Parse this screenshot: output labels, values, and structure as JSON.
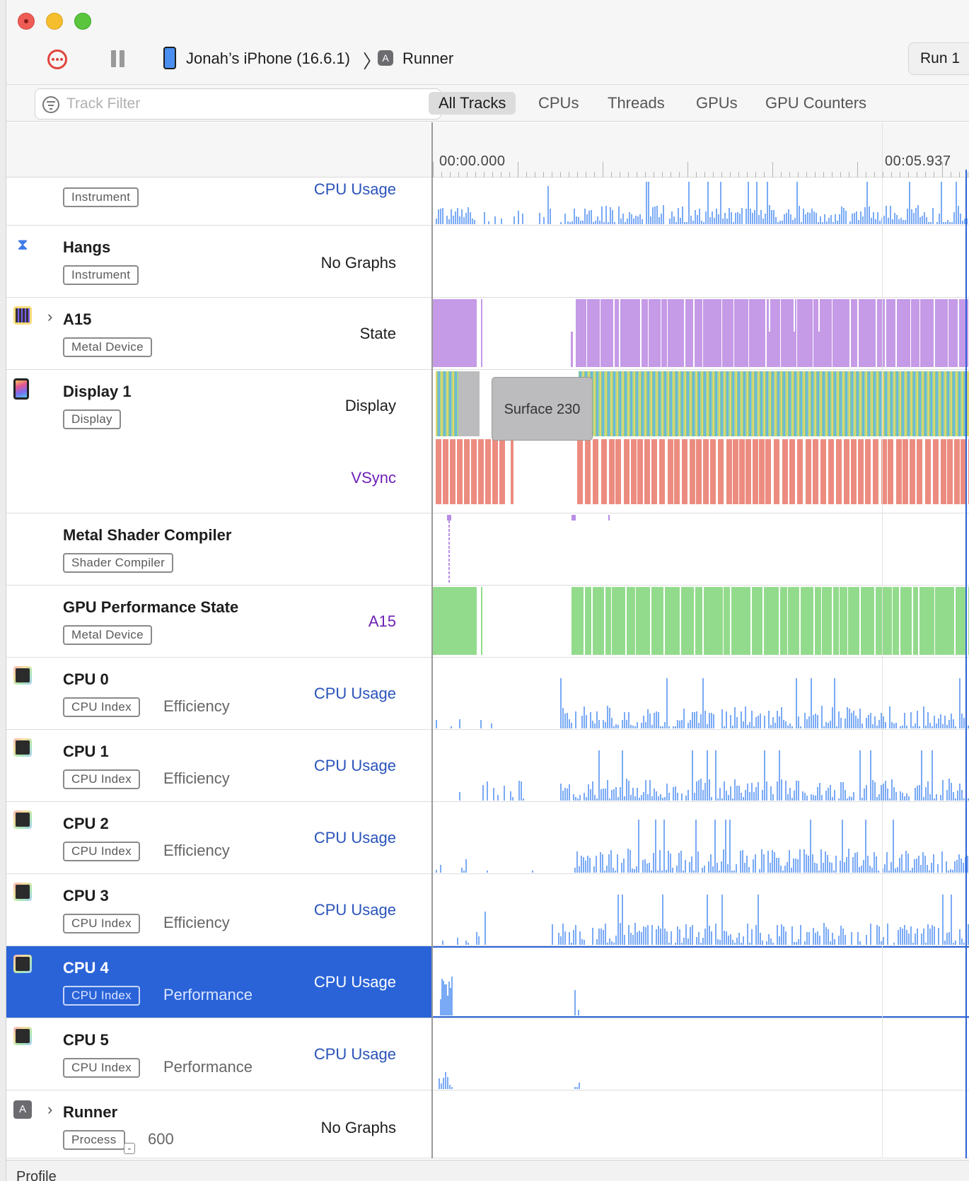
{
  "toolbar": {
    "device": "Jonah’s iPhone (16.6.1)",
    "app": "Runner",
    "run_label": "Run 1"
  },
  "filter": {
    "placeholder": "Track Filter",
    "segments": [
      "All Tracks",
      "CPUs",
      "Threads",
      "GPUs",
      "GPU Counters"
    ],
    "active": "All Tracks"
  },
  "timeline": {
    "start": "00:00.000",
    "end": "00:05.937"
  },
  "rows": [
    {
      "id": "row0",
      "title": "",
      "tag": "Instrument",
      "sub": "",
      "graphs": [
        "CPU Usage"
      ]
    },
    {
      "id": "row1",
      "title": "Hangs",
      "tag": "Instrument",
      "sub": "",
      "graphs": [
        "No Graphs"
      ]
    },
    {
      "id": "row2",
      "title": "A15",
      "tag": "Metal Device",
      "sub": "",
      "graphs": [
        "State"
      ]
    },
    {
      "id": "row3",
      "title": "Display 1",
      "tag": "Display",
      "sub": "",
      "graphs": [
        "Display",
        "VSync"
      ]
    },
    {
      "id": "row4",
      "title": "Metal Shader Compiler",
      "tag": "Shader Compiler",
      "sub": "",
      "graphs": []
    },
    {
      "id": "row5",
      "title": "GPU Performance State",
      "tag": "Metal Device",
      "sub": "",
      "graphs": [
        "A15"
      ]
    },
    {
      "id": "row6",
      "title": "CPU 0",
      "tag": "CPU Index",
      "sub": "Efficiency",
      "graphs": [
        "CPU Usage"
      ]
    },
    {
      "id": "row7",
      "title": "CPU 1",
      "tag": "CPU Index",
      "sub": "Efficiency",
      "graphs": [
        "CPU Usage"
      ]
    },
    {
      "id": "row8",
      "title": "CPU 2",
      "tag": "CPU Index",
      "sub": "Efficiency",
      "graphs": [
        "CPU Usage"
      ]
    },
    {
      "id": "row9",
      "title": "CPU 3",
      "tag": "CPU Index",
      "sub": "Efficiency",
      "graphs": [
        "CPU Usage"
      ]
    },
    {
      "id": "row10",
      "title": "CPU 4",
      "tag": "CPU Index",
      "sub": "Performance",
      "graphs": [
        "CPU Usage"
      ],
      "selected": true
    },
    {
      "id": "row11",
      "title": "CPU 5",
      "tag": "CPU Index",
      "sub": "Performance",
      "graphs": [
        "CPU Usage"
      ]
    },
    {
      "id": "row12",
      "title": "Runner",
      "tag": "Process",
      "sub": "600",
      "graphs": [
        "No Graphs"
      ]
    }
  ],
  "display_track": {
    "surface_label": "Surface 230"
  },
  "bottom": {
    "label": "Profile"
  },
  "colors": {
    "usage": "#7aaaf5",
    "state": "#c59ae6",
    "vsync": "#ec8c80",
    "gpu_perf": "#92db8c",
    "selection": "#2a63d8"
  }
}
